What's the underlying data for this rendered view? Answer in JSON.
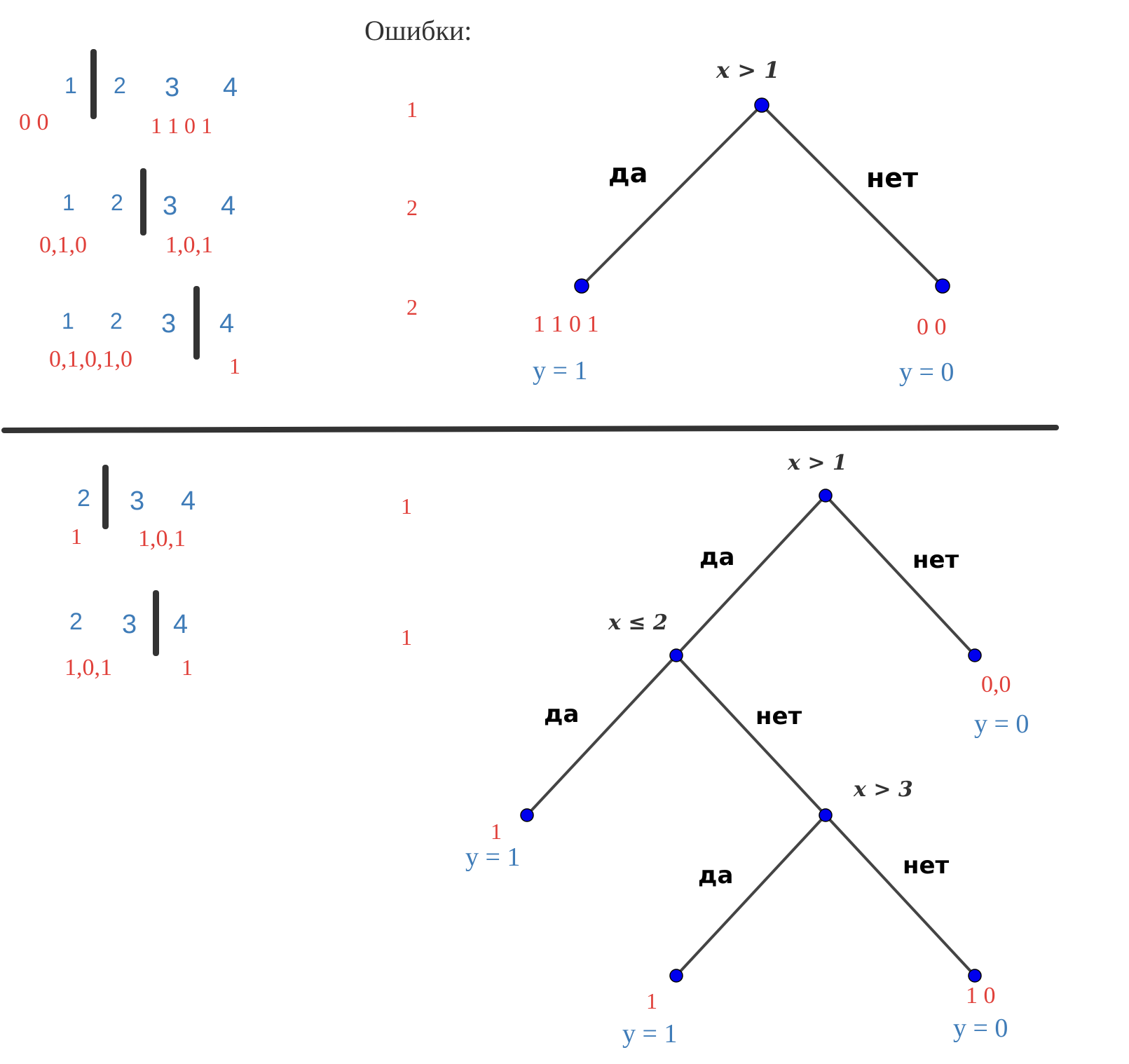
{
  "header": {
    "title": "Ошибки:"
  },
  "top_splits": [
    {
      "nums": [
        "1",
        "2",
        "3",
        "4"
      ],
      "left": "0 0",
      "right": "1 1 0 1",
      "errors": "1"
    },
    {
      "nums": [
        "1",
        "2",
        "3",
        "4"
      ],
      "left": "0,1,0",
      "right": "1,0,1",
      "errors": "2"
    },
    {
      "nums": [
        "1",
        "2",
        "3",
        "4"
      ],
      "left": "0,1,0,1,0",
      "right": "1",
      "errors": "2"
    }
  ],
  "bottom_splits": [
    {
      "nums": [
        "2",
        "3",
        "4"
      ],
      "left": "1",
      "right": "1,0,1",
      "errors": "1"
    },
    {
      "nums": [
        "2",
        "3",
        "4"
      ],
      "left": "1,0,1",
      "right": "1",
      "errors": "1"
    }
  ],
  "tree1": {
    "root_condition": "x > 1",
    "yes_label": "да",
    "no_label": "нет",
    "left_leaf": {
      "values": "1 1 0 1",
      "prediction": "y = 1"
    },
    "right_leaf": {
      "values": "0 0",
      "prediction": "y = 0"
    }
  },
  "tree2": {
    "root_condition": "x > 1",
    "root_yes": "да",
    "root_no": "нет",
    "node2_condition": "x ≤ 2",
    "node2_yes": "да",
    "node2_no": "нет",
    "node3_condition": "x > 3",
    "node3_yes": "да",
    "node3_no": "нет",
    "leaf_root_no": {
      "values": "0,0",
      "prediction": "y = 0"
    },
    "leaf_node2_yes": {
      "values": "1",
      "prediction": "y = 1"
    },
    "leaf_node3_yes": {
      "values": "1",
      "prediction": "y = 1"
    },
    "leaf_node3_no": {
      "values": "1 0",
      "prediction": "y = 0"
    }
  },
  "colors": {
    "node": "#0000ee",
    "edge": "#444444",
    "blue_text": "#3f7cb8",
    "red_text": "#e0403a"
  }
}
